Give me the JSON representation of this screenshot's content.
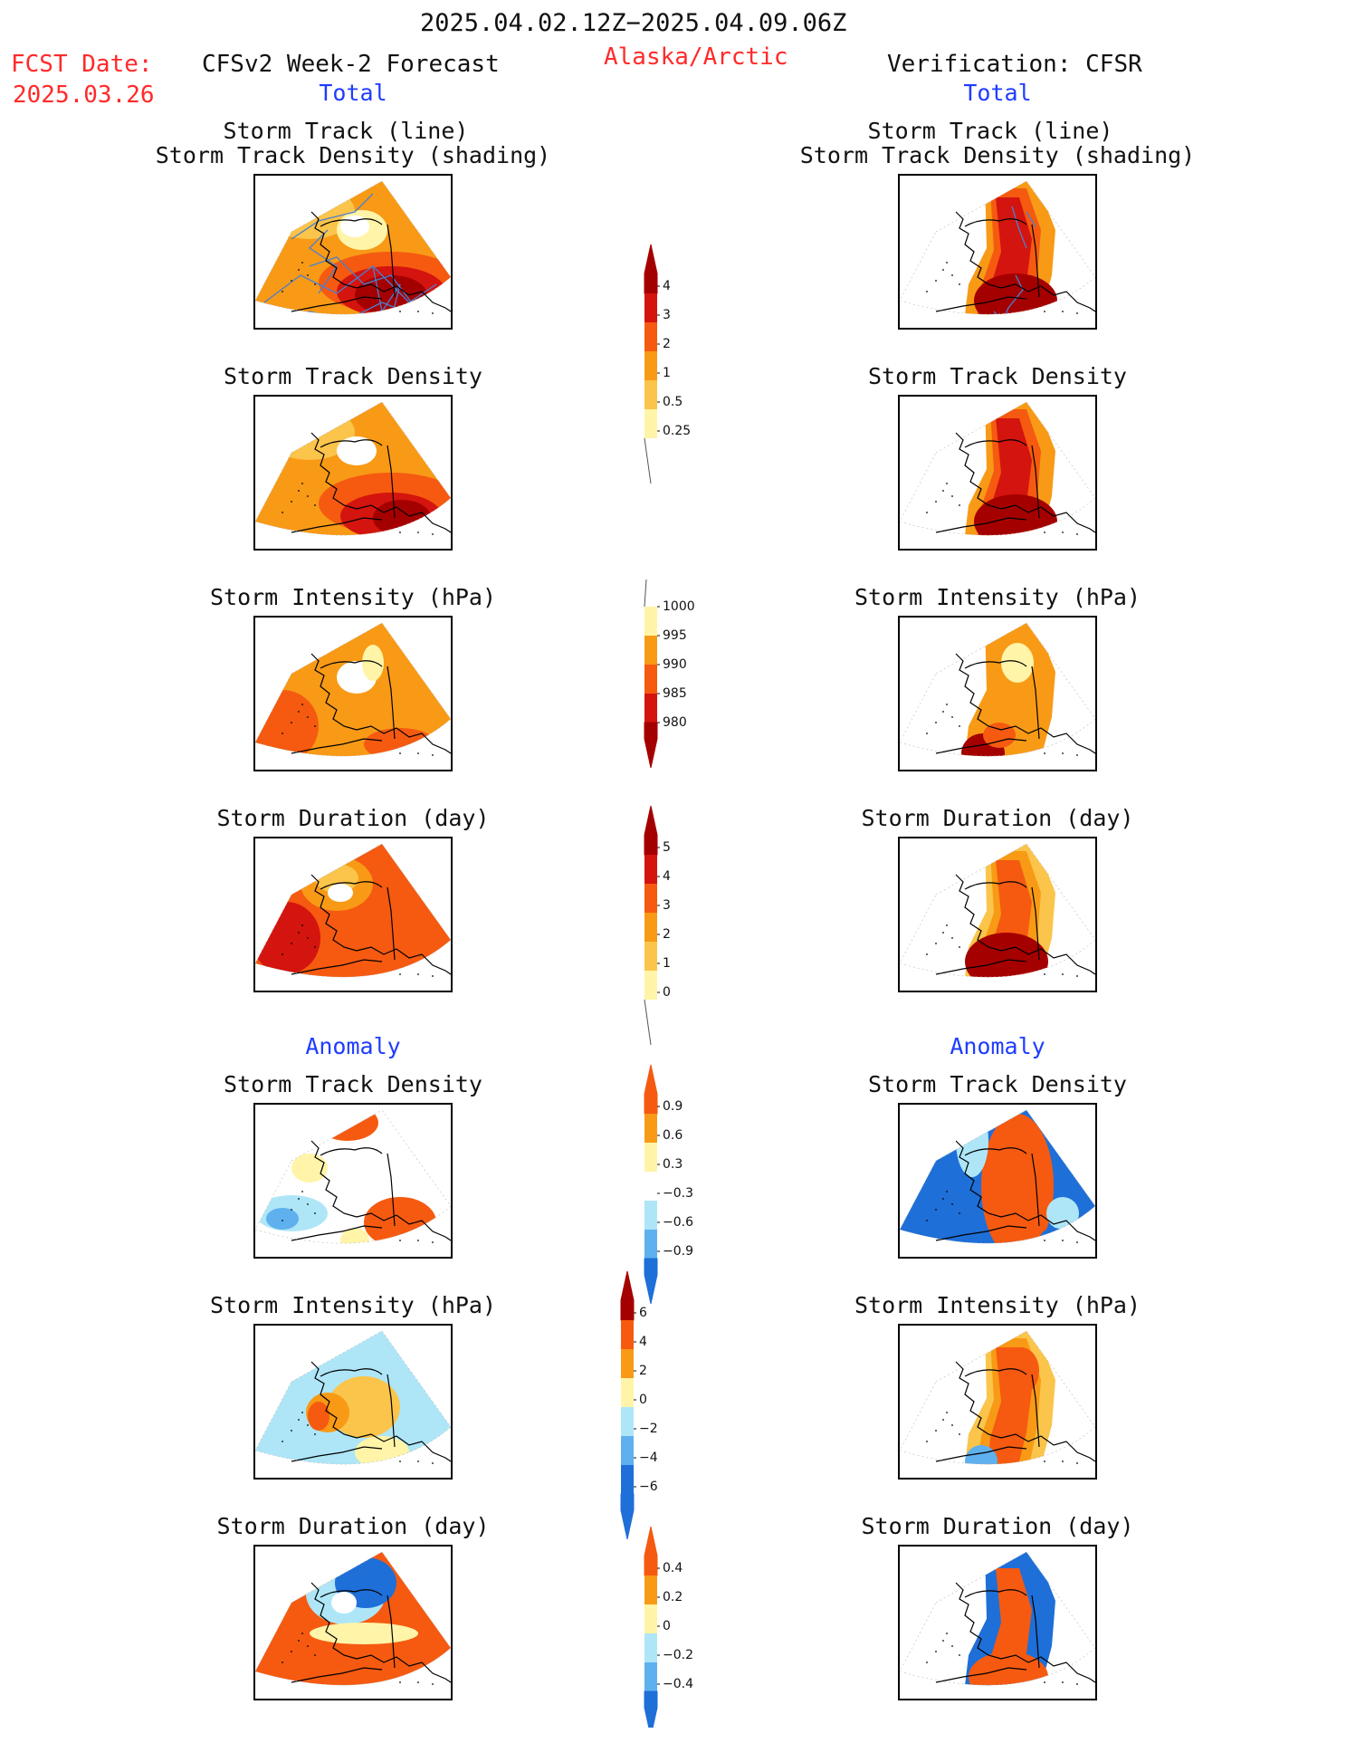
{
  "header": {
    "period": "2025.04.02.12Z−2025.04.09.06Z",
    "fcst_label": "FCST Date:",
    "fcst_date": "2025.03.26",
    "left_title": "CFSv2 Week-2 Forecast",
    "region": "Alaska/Arctic",
    "right_title": "Verification: CFSR",
    "total_left": "Total",
    "total_right": "Total",
    "anomaly_left": "Anomaly",
    "anomaly_right": "Anomaly"
  },
  "panels": {
    "track_line": "Storm Track (line)",
    "track_density_shading": "Storm Track Density (shading)",
    "track_density": "Storm Track Density",
    "intensity": "Storm Intensity (hPa)",
    "duration": "Storm Duration (day)"
  },
  "colorbars": {
    "density": [
      "4",
      "3",
      "2",
      "1",
      "0.5",
      "0.25"
    ],
    "intensity": [
      "1000",
      "995",
      "990",
      "985",
      "980"
    ],
    "duration": [
      "5",
      "4",
      "3",
      "2",
      "1",
      "0"
    ],
    "anom_density": [
      "0.9",
      "0.6",
      "0.3",
      "−0.3",
      "−0.6",
      "−0.9"
    ],
    "anom_intensity": [
      "6",
      "4",
      "2",
      "0",
      "−2",
      "−4",
      "−6"
    ],
    "anom_duration": [
      "0.4",
      "0.2",
      "0",
      "−0.2",
      "−0.4"
    ]
  },
  "colors": {
    "title_red": "#ff2a2a",
    "label_blue": "#1f3cff",
    "dark_red": "#a50000",
    "red": "#d4140e",
    "orange_red": "#f55a10",
    "orange": "#f89a16",
    "light_orange": "#fbc44a",
    "pale_yellow": "#fff4a8",
    "light_blue": "#aee6f8",
    "mid_blue": "#5fb0ee",
    "blue": "#1e6fd8",
    "track_line": "#4a7fd0"
  }
}
